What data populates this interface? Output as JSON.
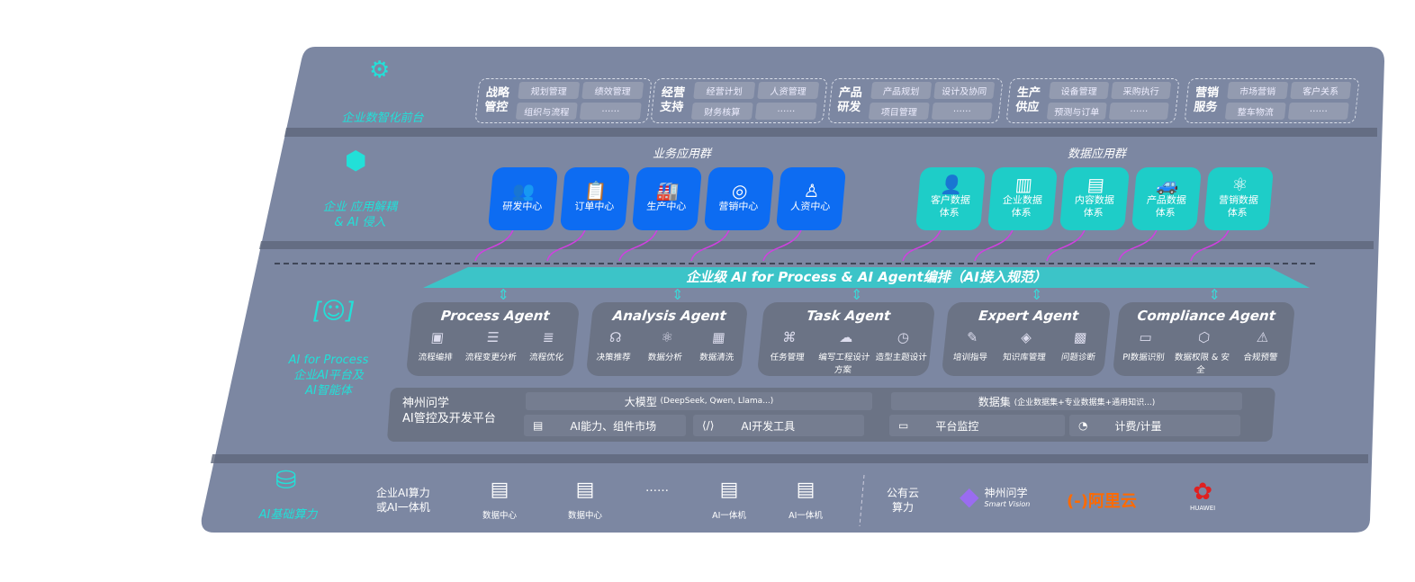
{
  "colors": {
    "board": "#7c87a2",
    "accent_teal": "#22e0d8",
    "business_blue": "#0d6cf2",
    "data_teal": "#1ecdc8",
    "agent_card": "#6b7385",
    "connector_magenta": "#d040e0",
    "aliyun_orange": "#ff6a00",
    "huawei_red": "#e02020"
  },
  "front": {
    "icon": "brain-icon",
    "label": "企业数智化前台",
    "groups": [
      {
        "title": "战略管控",
        "items": [
          "规划管理",
          "绩效管理",
          "组织与流程",
          "……"
        ]
      },
      {
        "title": "经营支持",
        "items": [
          "经营计划",
          "人资管理",
          "财务核算",
          "……"
        ]
      },
      {
        "title": "产品研发",
        "items": [
          "产品规划",
          "设计及协同",
          "项目管理",
          "……"
        ]
      },
      {
        "title": "生产供应",
        "items": [
          "设备管理",
          "采购执行",
          "预测与订单",
          "……"
        ]
      },
      {
        "title": "营销服务",
        "items": [
          "市场营销",
          "客户关系",
          "整车物流",
          "……"
        ]
      }
    ]
  },
  "apps": {
    "icon": "molecule-icon",
    "label_line1": "企业 应用解耦",
    "label_line2": "& AI 侵入",
    "business_title": "业务应用群",
    "business": [
      {
        "label": "研发中心",
        "icon": "users-icon"
      },
      {
        "label": "订单中心",
        "icon": "clipboard-icon"
      },
      {
        "label": "生产中心",
        "icon": "factory-icon"
      },
      {
        "label": "营销中心",
        "icon": "target-icon"
      },
      {
        "label": "人资中心",
        "icon": "person-icon"
      }
    ],
    "data_title": "数据应用群",
    "data": [
      {
        "label": "客户数据体系",
        "icon": "user-icon"
      },
      {
        "label": "企业数据体系",
        "icon": "building-icon"
      },
      {
        "label": "内容数据体系",
        "icon": "books-icon"
      },
      {
        "label": "产品数据体系",
        "icon": "car-icon"
      },
      {
        "label": "营销数据体系",
        "icon": "atom-icon"
      }
    ]
  },
  "orchestration": {
    "title": "企业级 AI for Process & AI Agent编排（AI接入规范）"
  },
  "ai_process": {
    "icon": "face-scan-icon",
    "label_line1": "AI for Process",
    "label_line2": "企业AI平台及",
    "label_line3": "AI智能体",
    "agents": [
      {
        "name": "Process Agent",
        "items": [
          {
            "label": "流程编排",
            "icon": "chart-icon"
          },
          {
            "label": "流程变更分析",
            "icon": "list-icon"
          },
          {
            "label": "流程优化",
            "icon": "stack-icon"
          }
        ]
      },
      {
        "name": "Analysis Agent",
        "items": [
          {
            "label": "决策推荐",
            "icon": "head-icon"
          },
          {
            "label": "数据分析",
            "icon": "atom-icon"
          },
          {
            "label": "数据清洗",
            "icon": "clean-icon"
          }
        ]
      },
      {
        "name": "Task Agent",
        "items": [
          {
            "label": "任务管理",
            "icon": "network-icon"
          },
          {
            "label": "编写工程设计方案",
            "icon": "cloud-icon"
          },
          {
            "label": "造型主题设计",
            "icon": "clock-doc-icon"
          }
        ]
      },
      {
        "name": "Expert Agent",
        "items": [
          {
            "label": "培训指导",
            "icon": "teach-icon"
          },
          {
            "label": "知识库管理",
            "icon": "layers-icon"
          },
          {
            "label": "问题诊断",
            "icon": "diagnose-icon"
          }
        ]
      },
      {
        "name": "Compliance Agent",
        "items": [
          {
            "label": "PI数据识别",
            "icon": "id-icon"
          },
          {
            "label": "数据权限 & 安全",
            "icon": "shield-icon"
          },
          {
            "label": "合规预警",
            "icon": "alert-icon"
          }
        ]
      }
    ],
    "platform": {
      "name_line1": "神州问学",
      "name_line2": "AI管控及开发平台",
      "model_label": "大模型",
      "model_note": "(DeepSeek, Qwen, Llama...)",
      "dataset_label": "数据集",
      "dataset_note": "(企业数据集+专业数据集+通用知识...)",
      "tools": [
        {
          "label": "AI能力、组件市场",
          "icon": "market-icon"
        },
        {
          "label": "AI开发工具",
          "icon": "code-icon"
        },
        {
          "label": "平台监控",
          "icon": "monitor-icon"
        },
        {
          "label": "计费/计量",
          "icon": "gauge-icon"
        }
      ]
    }
  },
  "infra": {
    "icon": "database-icon",
    "label": "AI基础算力",
    "private_line1": "企业AI算力",
    "private_line2": "或AI一体机",
    "nodes": [
      {
        "label": "数据中心",
        "icon": "server-icon"
      },
      {
        "label": "数据中心",
        "icon": "server-icon"
      },
      {
        "label": "……",
        "icon": ""
      },
      {
        "label": "AI一体机",
        "icon": "server-icon"
      },
      {
        "label": "AI一体机",
        "icon": "server-icon"
      }
    ],
    "public_line1": "公有云",
    "public_line2": "算力",
    "vendors": [
      {
        "name": "神州问学",
        "sub": "Smart Vision"
      },
      {
        "name": "阿里云",
        "mark": "(-)"
      },
      {
        "name": "HUAWEI"
      }
    ]
  }
}
